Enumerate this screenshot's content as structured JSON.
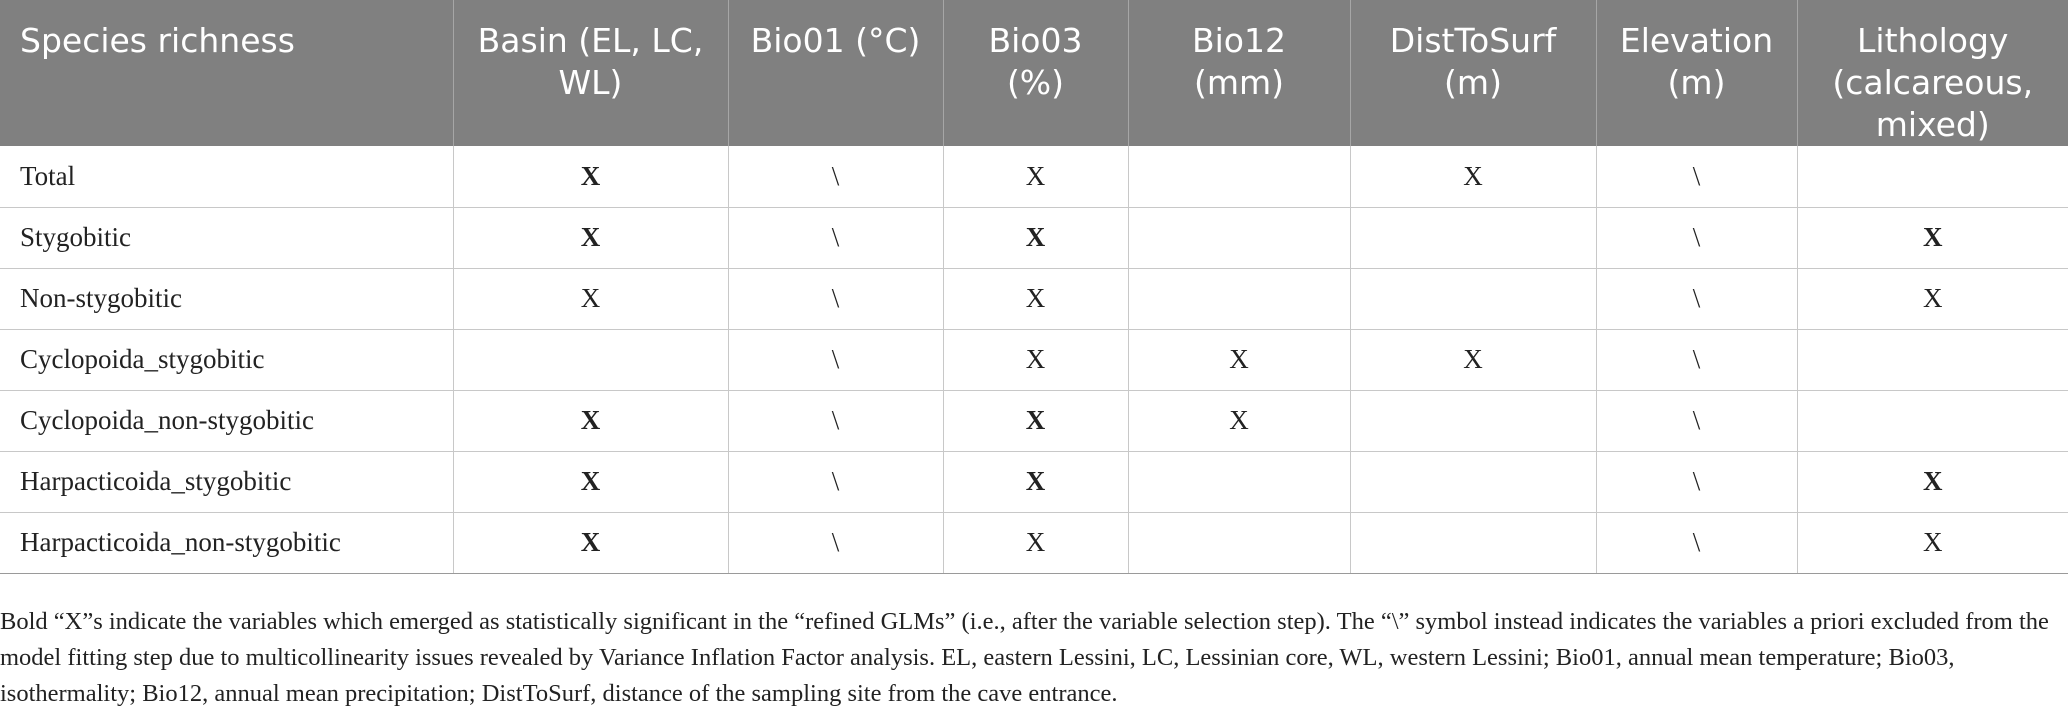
{
  "columns": [
    "Species richness",
    "Basin (EL, LC, WL)",
    "Bio01 (°C)",
    "Bio03 (%)",
    "Bio12 (mm)",
    "DistToSurf (m)",
    "Elevation (m)",
    "Lithology (calcareous, mixed)"
  ],
  "rows": [
    {
      "label": "Total",
      "basin": "X",
      "bio01": "\\",
      "bio03": "X",
      "bio12": "",
      "dist": "X",
      "elev": "\\",
      "lith": ""
    },
    {
      "label": "Stygobitic",
      "basin": "X",
      "bio01": "\\",
      "bio03": "X",
      "bio12": "",
      "dist": "",
      "elev": "\\",
      "lith": "X"
    },
    {
      "label": "Non-stygobitic",
      "basin": "X",
      "bio01": "\\",
      "bio03": "X",
      "bio12": "",
      "dist": "",
      "elev": "\\",
      "lith": "X"
    },
    {
      "label": "Cyclopoida_stygobitic",
      "basin": "",
      "bio01": "\\",
      "bio03": "X",
      "bio12": "X",
      "dist": "X",
      "elev": "\\",
      "lith": ""
    },
    {
      "label": "Cyclopoida_non-stygobitic",
      "basin": "X",
      "bio01": "\\",
      "bio03": "X",
      "bio12": "X",
      "dist": "",
      "elev": "\\",
      "lith": ""
    },
    {
      "label": "Harpacticoida_stygobitic",
      "basin": "X",
      "bio01": "\\",
      "bio03": "X",
      "bio12": "",
      "dist": "",
      "elev": "\\",
      "lith": "X"
    },
    {
      "label": "Harpacticoida_non-stygobitic",
      "basin": "X",
      "bio01": "\\",
      "bio03": "X",
      "bio12": "",
      "dist": "",
      "elev": "\\",
      "lith": "X"
    }
  ],
  "footnote": "Bold “X”s indicate the variables which emerged as statistically significant in the “refined GLMs” (i.e., after the variable selection step). The “\\” symbol instead indicates the variables a priori excluded from the model fitting step due to multicollinearity issues revealed by Variance Inflation Factor analysis. EL, eastern Lessini, LC, Lessinian core, WL, western Lessini; Bio01, annual mean temperature; Bio03, isothermality; Bio12, annual mean precipitation; DistToSurf, distance of the sampling site from the cave entrance."
}
